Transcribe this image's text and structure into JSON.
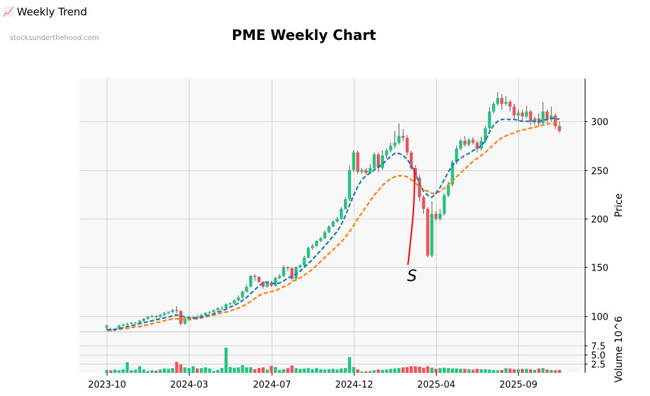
{
  "header": {
    "icon": "chart-increasing-icon",
    "title": "Weekly Trend"
  },
  "source_label": "stocksunderthehood.com",
  "chart_data": [
    {
      "type": "candlestick",
      "title": "PME Weekly Chart",
      "ylabel": "Price",
      "ylim": [
        84,
        344
      ],
      "yticks": [
        100,
        150,
        200,
        250,
        300
      ],
      "xticks": [
        "2023-10",
        "2024-03",
        "2024-07",
        "2024-12",
        "2025-04",
        "2025-09"
      ],
      "colors": {
        "up": "#26c281",
        "down": "#f0525a",
        "ma_fast": "#1f77b4",
        "ma_slow": "#ff7f0e",
        "annotation": "#ff0000"
      },
      "candles": [
        [
          88,
          90,
          91,
          86
        ],
        [
          86,
          85,
          88,
          84
        ],
        [
          85,
          87,
          88,
          84
        ],
        [
          87,
          90,
          91,
          86
        ],
        [
          90,
          91,
          92,
          89
        ],
        [
          91,
          92,
          93,
          90
        ],
        [
          92,
          93,
          94,
          91
        ],
        [
          93,
          93,
          94,
          92
        ],
        [
          93,
          95,
          96,
          92
        ],
        [
          95,
          97,
          98,
          94
        ],
        [
          97,
          99,
          100,
          96
        ],
        [
          99,
          100,
          101,
          98
        ],
        [
          100,
          99,
          101,
          97
        ],
        [
          99,
          101,
          102,
          98
        ],
        [
          101,
          103,
          104,
          100
        ],
        [
          103,
          104,
          105,
          102
        ],
        [
          104,
          106,
          107,
          103
        ],
        [
          106,
          105,
          110,
          103
        ],
        [
          105,
          92,
          106,
          90
        ],
        [
          92,
          98,
          99,
          91
        ],
        [
          98,
          98,
          100,
          96
        ],
        [
          98,
          99,
          100,
          97
        ],
        [
          99,
          98,
          101,
          96
        ],
        [
          98,
          101,
          102,
          97
        ],
        [
          101,
          103,
          104,
          100
        ],
        [
          103,
          104,
          105,
          102
        ],
        [
          104,
          106,
          107,
          103
        ],
        [
          106,
          108,
          109,
          105
        ],
        [
          108,
          108,
          110,
          106
        ],
        [
          108,
          112,
          113,
          107
        ],
        [
          112,
          113,
          114,
          111
        ],
        [
          113,
          116,
          117,
          112
        ],
        [
          116,
          119,
          121,
          115
        ],
        [
          119,
          125,
          126,
          118
        ],
        [
          125,
          130,
          132,
          124
        ],
        [
          130,
          141,
          142,
          129
        ],
        [
          141,
          140,
          143,
          136
        ],
        [
          140,
          135,
          141,
          134
        ],
        [
          135,
          130,
          136,
          128
        ],
        [
          130,
          134,
          135,
          129
        ],
        [
          134,
          131,
          136,
          130
        ],
        [
          131,
          139,
          140,
          130
        ],
        [
          139,
          141,
          143,
          138
        ],
        [
          141,
          150,
          152,
          140
        ],
        [
          150,
          149,
          151,
          146
        ],
        [
          149,
          138,
          150,
          136
        ],
        [
          138,
          150,
          151,
          137
        ],
        [
          150,
          152,
          153,
          149
        ],
        [
          152,
          160,
          162,
          151
        ],
        [
          160,
          170,
          171,
          159
        ],
        [
          170,
          172,
          174,
          168
        ],
        [
          172,
          177,
          178,
          171
        ],
        [
          177,
          180,
          181,
          176
        ],
        [
          180,
          186,
          188,
          179
        ],
        [
          186,
          192,
          193,
          185
        ],
        [
          192,
          197,
          198,
          191
        ],
        [
          197,
          200,
          202,
          196
        ],
        [
          200,
          210,
          212,
          199
        ],
        [
          210,
          220,
          222,
          209
        ],
        [
          220,
          250,
          255,
          218
        ],
        [
          250,
          268,
          270,
          248
        ],
        [
          268,
          248,
          270,
          246
        ],
        [
          248,
          250,
          252,
          246
        ],
        [
          250,
          247,
          252,
          245
        ],
        [
          247,
          252,
          256,
          246
        ],
        [
          252,
          266,
          268,
          251
        ],
        [
          266,
          252,
          268,
          248
        ],
        [
          252,
          265,
          270,
          250
        ],
        [
          265,
          270,
          272,
          262
        ],
        [
          270,
          275,
          278,
          268
        ],
        [
          275,
          278,
          290,
          272
        ],
        [
          278,
          285,
          298,
          276
        ],
        [
          285,
          283,
          292,
          280
        ],
        [
          283,
          268,
          286,
          265
        ],
        [
          268,
          252,
          270,
          250
        ],
        [
          252,
          242,
          255,
          238
        ],
        [
          242,
          222,
          245,
          218
        ],
        [
          222,
          210,
          224,
          205
        ],
        [
          210,
          162,
          212,
          160
        ],
        [
          162,
          205,
          218,
          160
        ],
        [
          205,
          200,
          208,
          198
        ],
        [
          200,
          205,
          210,
          198
        ],
        [
          205,
          224,
          226,
          203
        ],
        [
          224,
          235,
          238,
          222
        ],
        [
          235,
          258,
          260,
          233
        ],
        [
          258,
          272,
          275,
          256
        ],
        [
          272,
          280,
          282,
          270
        ],
        [
          280,
          276,
          285,
          274
        ],
        [
          276,
          281,
          283,
          274
        ],
        [
          281,
          278,
          284,
          276
        ],
        [
          278,
          272,
          280,
          268
        ],
        [
          272,
          280,
          284,
          270
        ],
        [
          280,
          293,
          295,
          278
        ],
        [
          293,
          310,
          315,
          291
        ],
        [
          310,
          318,
          320,
          308
        ],
        [
          318,
          324,
          330,
          316
        ],
        [
          324,
          318,
          328,
          312
        ],
        [
          318,
          320,
          326,
          316
        ],
        [
          320,
          315,
          322,
          310
        ],
        [
          315,
          306,
          318,
          302
        ],
        [
          306,
          309,
          312,
          300
        ],
        [
          309,
          305,
          312,
          300
        ],
        [
          305,
          310,
          316,
          303
        ],
        [
          310,
          300,
          312,
          296
        ],
        [
          300,
          303,
          305,
          296
        ],
        [
          303,
          298,
          308,
          295
        ],
        [
          298,
          310,
          320,
          296
        ],
        [
          310,
          302,
          312,
          298
        ],
        [
          302,
          306,
          315,
          300
        ],
        [
          306,
          295,
          308,
          292
        ],
        [
          295,
          290,
          300,
          288
        ]
      ],
      "ma_fast": [
        86,
        86,
        86,
        87,
        88,
        89,
        90,
        91,
        92,
        93,
        94,
        95,
        96,
        97,
        98,
        99,
        100,
        101,
        100,
        99,
        98,
        98,
        98,
        99,
        100,
        101,
        102,
        104,
        105,
        107,
        109,
        111,
        113,
        116,
        119,
        123,
        127,
        131,
        134,
        135,
        134,
        133,
        134,
        136,
        139,
        141,
        143,
        146,
        150,
        154,
        158,
        163,
        167,
        172,
        177,
        182,
        187,
        194,
        203,
        214,
        224,
        233,
        240,
        244,
        247,
        250,
        253,
        256,
        260,
        264,
        267,
        267,
        265,
        261,
        255,
        246,
        236,
        228,
        224,
        222,
        226,
        232,
        240,
        248,
        255,
        259,
        262,
        265,
        267,
        270,
        272,
        275,
        280,
        289,
        296,
        300,
        302,
        302,
        302,
        302,
        301,
        300,
        300,
        300,
        300,
        300,
        301,
        302,
        303,
        303,
        302
      ],
      "ma_slow": [
        85,
        85,
        86,
        86,
        87,
        87,
        88,
        89,
        89,
        90,
        91,
        92,
        93,
        94,
        95,
        96,
        97,
        97,
        97,
        96,
        96,
        97,
        97,
        98,
        99,
        100,
        101,
        102,
        103,
        104,
        105,
        107,
        108,
        110,
        112,
        115,
        118,
        121,
        123,
        124,
        125,
        126,
        128,
        130,
        132,
        135,
        137,
        139,
        142,
        145,
        148,
        152,
        156,
        160,
        164,
        168,
        172,
        176,
        181,
        187,
        193,
        200,
        206,
        212,
        218,
        224,
        229,
        234,
        238,
        241,
        243,
        244,
        244,
        243,
        240,
        236,
        233,
        230,
        228,
        226,
        226,
        228,
        231,
        235,
        239,
        243,
        247,
        251,
        255,
        259,
        262,
        265,
        268,
        272,
        276,
        280,
        283,
        285,
        287,
        288,
        290,
        291,
        292,
        293,
        294,
        295,
        296,
        297,
        298,
        298,
        298
      ],
      "annotation": {
        "text": "S"
      }
    },
    {
      "type": "bar",
      "ylabel": "Volume  10^6",
      "ylim": [
        0,
        11.3
      ],
      "yticks": [
        2.5,
        5.0,
        7.5
      ],
      "values": [
        0.8,
        0.7,
        0.9,
        0.7,
        1.0,
        2.9,
        0.7,
        0.9,
        1.8,
        0.9,
        0.5,
        0.7,
        0.6,
        0.9,
        1.2,
        1.1,
        1.3,
        3.0,
        2.3,
        1.5,
        1.3,
        1.8,
        1.2,
        1.3,
        1.5,
        1.2,
        0.5,
        0.8,
        1.3,
        6.9,
        1.6,
        1.4,
        1.5,
        2.1,
        1.5,
        1.5,
        1.0,
        1.3,
        1.5,
        0.9,
        1.9,
        1.6,
        0.8,
        1.0,
        1.3,
        2.0,
        1.3,
        1.1,
        1.2,
        1.3,
        1.0,
        1.3,
        1.0,
        0.9,
        1.0,
        1.1,
        0.9,
        1.2,
        1.3,
        4.3,
        1.6,
        1.0,
        0.4,
        0.4,
        0.5,
        0.7,
        0.9,
        0.8,
        0.9,
        1.1,
        1.2,
        1.3,
        1.5,
        1.6,
        1.8,
        1.8,
        1.7,
        1.4,
        1.8,
        1.4,
        1.1,
        1.3,
        1.4,
        1.3,
        1.2,
        1.2,
        1.1,
        1.1,
        1.0,
        0.9,
        1.1,
        1.0,
        1.0,
        0.9,
        0.8,
        0.7,
        0.8,
        1.3,
        1.2,
        1.0,
        1.0,
        1.1,
        1.1,
        1.0,
        0.8,
        1.2,
        1.3,
        0.9,
        0.8,
        0.7,
        0.8
      ]
    }
  ]
}
